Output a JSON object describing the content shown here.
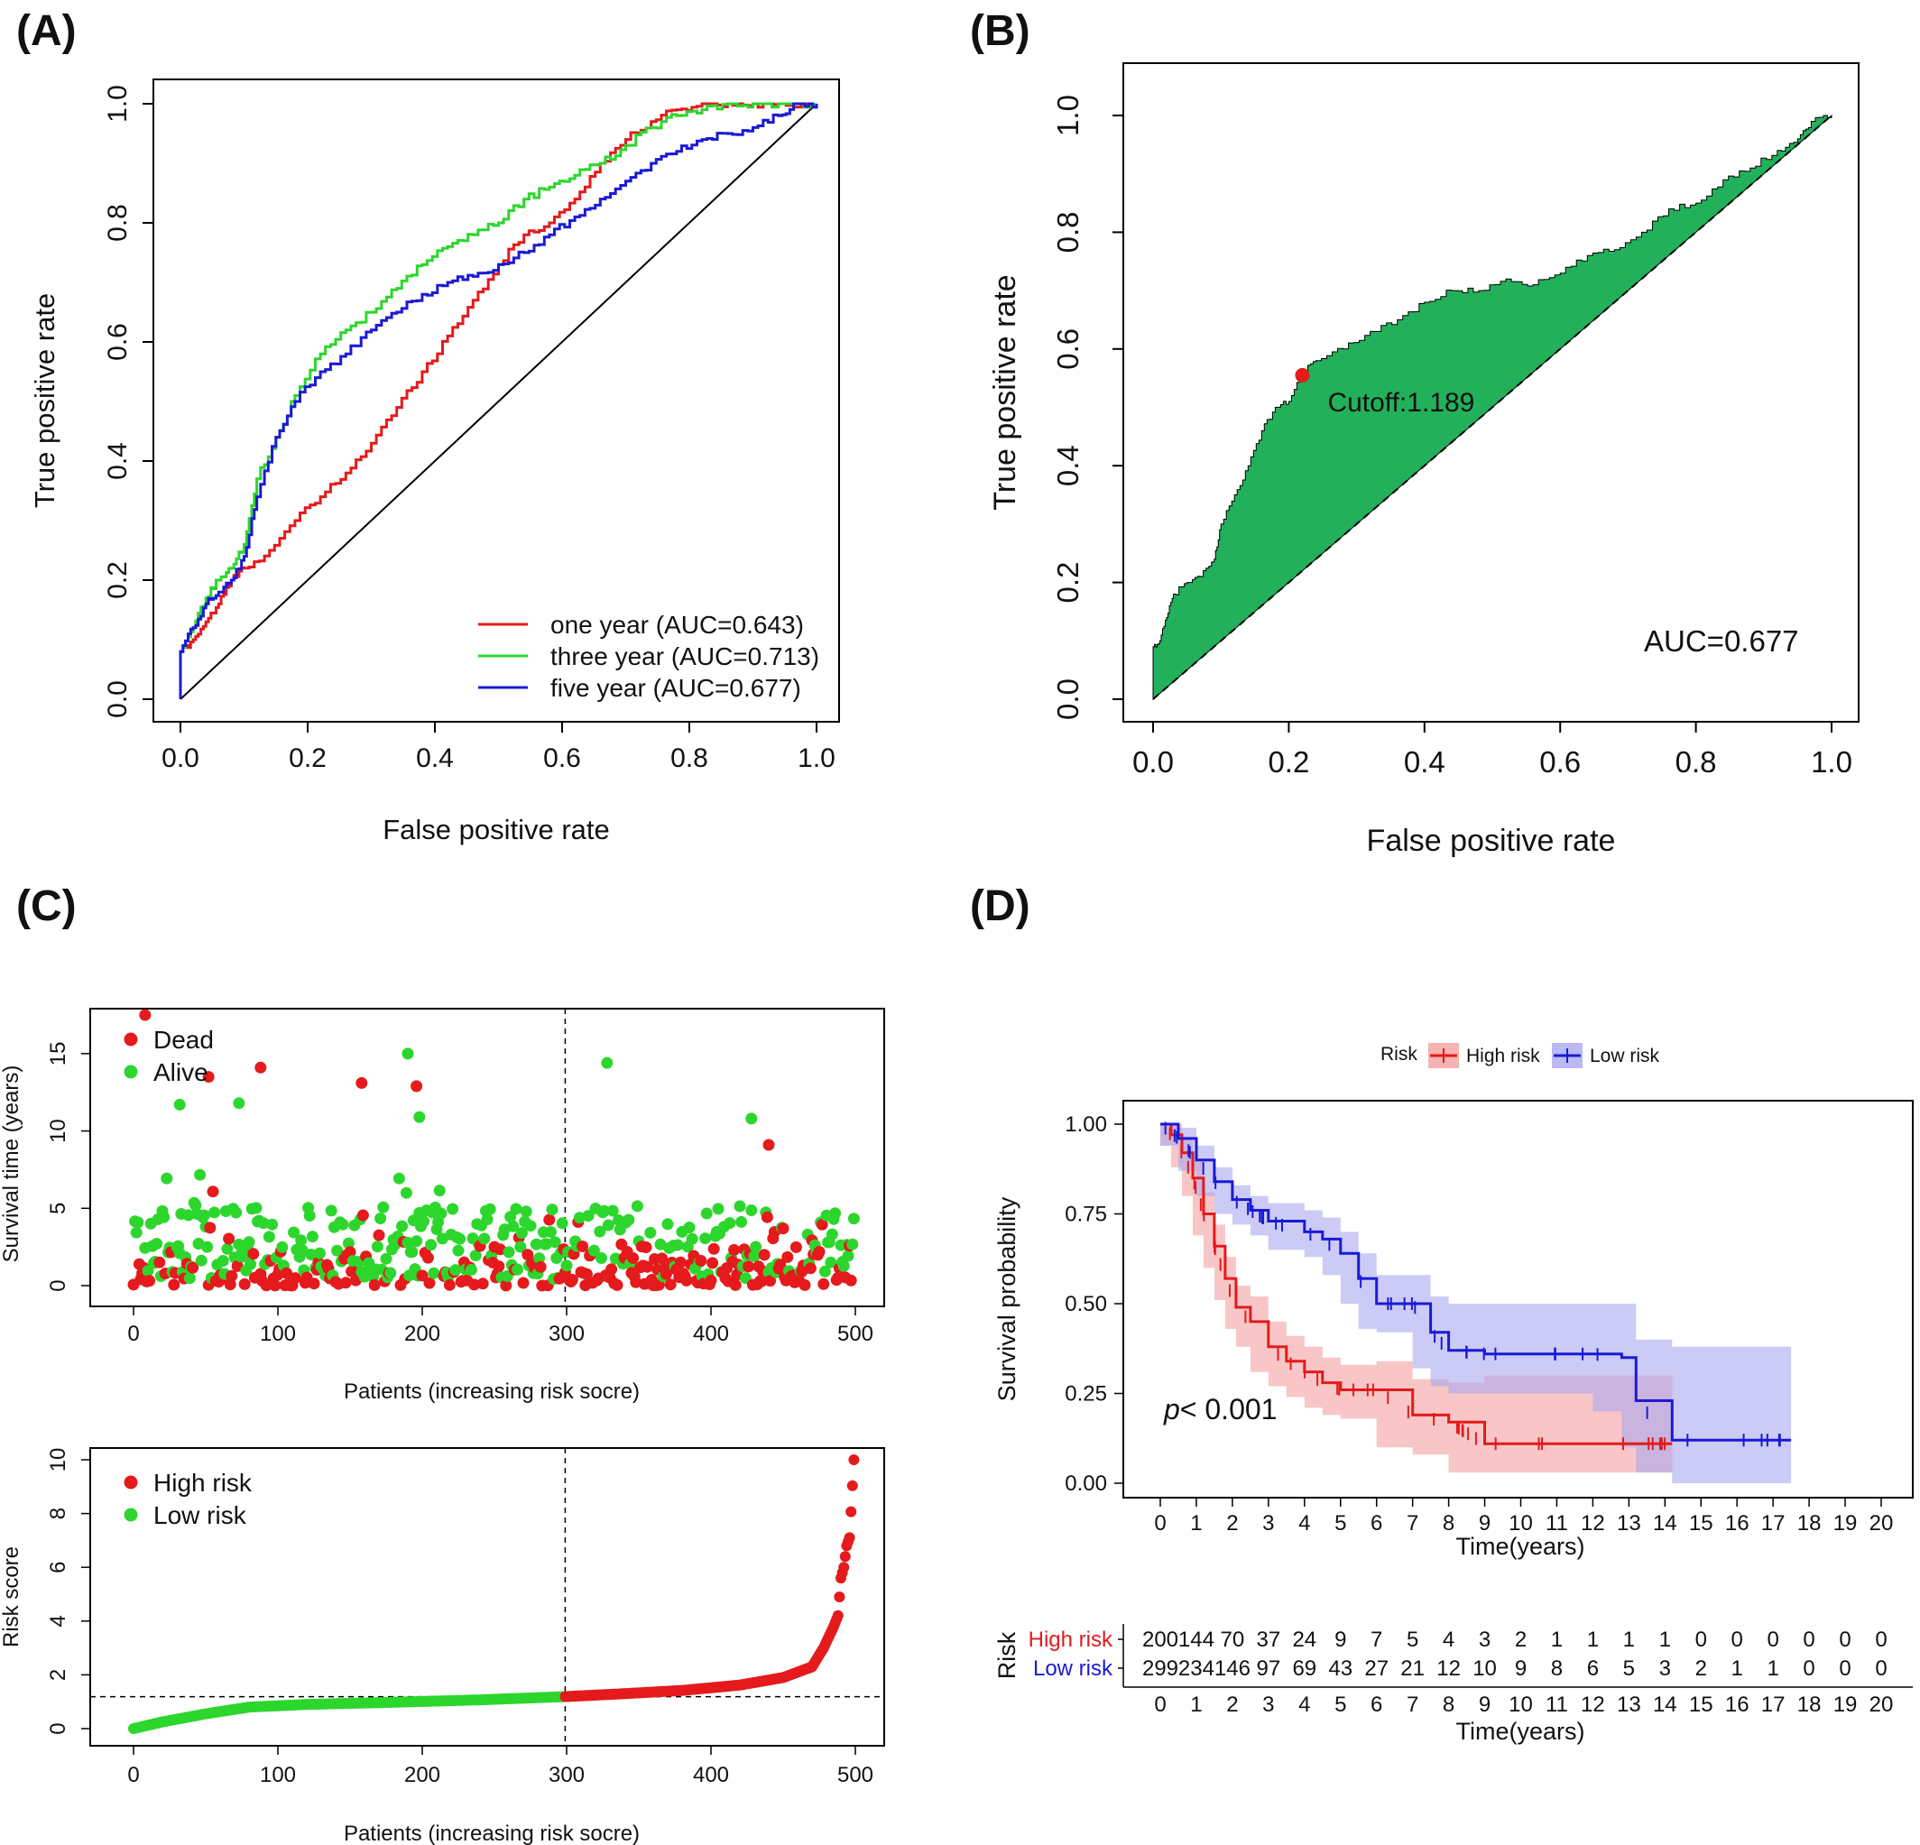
{
  "figure": {
    "panel_labels": [
      "(A)",
      "(B)",
      "(C)",
      "(D)"
    ]
  },
  "chart_data": [
    {
      "panel": "(A)",
      "type": "line",
      "xlabel": "False positive rate",
      "ylabel": "True positive rate",
      "xlim": [
        0,
        1
      ],
      "ylim": [
        0,
        1
      ],
      "xticks": [
        "0.0",
        "0.2",
        "0.4",
        "0.6",
        "0.8",
        "1.0"
      ],
      "yticks": [
        "0.0",
        "0.2",
        "0.4",
        "0.6",
        "0.8",
        "1.0"
      ],
      "diagonal": true,
      "legend_position": "bottom-right",
      "series": [
        {
          "name": "one year (AUC=0.643)",
          "color": "#e41a1c",
          "x": [
            0,
            0,
            0.02,
            0.04,
            0.06,
            0.08,
            0.1,
            0.14,
            0.18,
            0.22,
            0.26,
            0.3,
            0.34,
            0.38,
            0.42,
            0.46,
            0.5,
            0.54,
            0.58,
            0.62,
            0.66,
            0.7,
            0.74,
            0.78,
            0.82,
            0.86,
            0.9,
            0.94,
            1.0
          ],
          "y": [
            0,
            0.08,
            0.1,
            0.13,
            0.16,
            0.2,
            0.22,
            0.25,
            0.3,
            0.34,
            0.38,
            0.43,
            0.49,
            0.55,
            0.61,
            0.67,
            0.73,
            0.78,
            0.8,
            0.84,
            0.9,
            0.94,
            0.97,
            0.99,
            1.0,
            1.0,
            1.0,
            1.0,
            1.0
          ]
        },
        {
          "name": "three year (AUC=0.713)",
          "color": "#2dd62d",
          "x": [
            0,
            0,
            0.02,
            0.04,
            0.06,
            0.08,
            0.1,
            0.12,
            0.15,
            0.18,
            0.22,
            0.26,
            0.3,
            0.34,
            0.38,
            0.42,
            0.46,
            0.5,
            0.54,
            0.58,
            0.62,
            0.66,
            0.7,
            0.74,
            0.78,
            0.82,
            0.86,
            0.9,
            0.95,
            1.0
          ],
          "y": [
            0,
            0.08,
            0.12,
            0.17,
            0.2,
            0.22,
            0.26,
            0.37,
            0.44,
            0.51,
            0.58,
            0.62,
            0.65,
            0.69,
            0.73,
            0.76,
            0.78,
            0.8,
            0.84,
            0.86,
            0.88,
            0.9,
            0.93,
            0.96,
            0.98,
            0.99,
            1.0,
            1.0,
            1.0,
            1.0
          ]
        },
        {
          "name": "five year (AUC=0.677)",
          "color": "#1a1ad6",
          "x": [
            0,
            0,
            0.02,
            0.04,
            0.06,
            0.08,
            0.1,
            0.12,
            0.15,
            0.18,
            0.22,
            0.26,
            0.3,
            0.34,
            0.38,
            0.42,
            0.46,
            0.5,
            0.54,
            0.58,
            0.62,
            0.66,
            0.7,
            0.74,
            0.78,
            0.82,
            0.86,
            0.9,
            0.94,
            0.97,
            1.0
          ],
          "y": [
            0,
            0.08,
            0.12,
            0.16,
            0.18,
            0.2,
            0.24,
            0.34,
            0.44,
            0.5,
            0.55,
            0.58,
            0.62,
            0.65,
            0.68,
            0.7,
            0.71,
            0.73,
            0.75,
            0.78,
            0.81,
            0.84,
            0.87,
            0.9,
            0.92,
            0.94,
            0.95,
            0.96,
            0.98,
            1.0,
            1.0
          ]
        }
      ]
    },
    {
      "panel": "(B)",
      "type": "area",
      "xlabel": "False positive rate",
      "ylabel": "True positive rate",
      "xlim": [
        0,
        1
      ],
      "ylim": [
        0,
        1
      ],
      "xticks": [
        "0.0",
        "0.2",
        "0.4",
        "0.6",
        "0.8",
        "1.0"
      ],
      "yticks": [
        "0.0",
        "0.2",
        "0.4",
        "0.6",
        "0.8",
        "1.0"
      ],
      "fill_color": "#22b05a",
      "roc": {
        "x": [
          0,
          0,
          0.01,
          0.02,
          0.03,
          0.05,
          0.07,
          0.09,
          0.1,
          0.12,
          0.14,
          0.16,
          0.18,
          0.2,
          0.22,
          0.24,
          0.28,
          0.32,
          0.36,
          0.4,
          0.44,
          0.48,
          0.52,
          0.56,
          0.6,
          0.64,
          0.68,
          0.72,
          0.76,
          0.8,
          0.84,
          0.88,
          0.92,
          0.95,
          0.97,
          1.0
        ],
        "y": [
          0,
          0.09,
          0.1,
          0.14,
          0.18,
          0.2,
          0.21,
          0.24,
          0.3,
          0.35,
          0.4,
          0.46,
          0.5,
          0.51,
          0.56,
          0.58,
          0.6,
          0.63,
          0.65,
          0.68,
          0.7,
          0.7,
          0.72,
          0.71,
          0.73,
          0.76,
          0.77,
          0.8,
          0.84,
          0.85,
          0.89,
          0.91,
          0.94,
          0.96,
          0.99,
          1.0
        ]
      },
      "cutoff": {
        "x": 0.22,
        "y": 0.555,
        "label": "Cutoff:1.189",
        "color": "#e41a1c"
      },
      "auc_label": "AUC=0.677"
    },
    {
      "panel": "(C)-top",
      "type": "scatter",
      "xlabel": "Patients (increasing risk socre)",
      "ylabel": "Survival time (years)",
      "xlim": [
        0,
        500
      ],
      "ylim": [
        0,
        17.5
      ],
      "xticks": [
        "0",
        "100",
        "200",
        "300",
        "400",
        "500"
      ],
      "yticks": [
        "0",
        "5",
        "10",
        "15"
      ],
      "cutoff_index": 299,
      "legend_position": "top-left",
      "series": [
        {
          "name": "Dead",
          "color": "#e41a1c"
        },
        {
          "name": "Alive",
          "color": "#2dd62d"
        }
      ],
      "notable_points": [
        {
          "x": 8,
          "y": 17.5,
          "status": "Dead"
        },
        {
          "x": 52,
          "y": 13.5,
          "status": "Dead"
        },
        {
          "x": 88,
          "y": 14.1,
          "status": "Dead"
        },
        {
          "x": 158,
          "y": 13.1,
          "status": "Dead"
        },
        {
          "x": 190,
          "y": 15.0,
          "status": "Alive"
        },
        {
          "x": 196,
          "y": 12.9,
          "status": "Dead"
        },
        {
          "x": 198,
          "y": 10.9,
          "status": "Alive"
        },
        {
          "x": 328,
          "y": 14.4,
          "status": "Alive"
        },
        {
          "x": 428,
          "y": 10.8,
          "status": "Alive"
        },
        {
          "x": 440,
          "y": 9.1,
          "status": "Dead"
        },
        {
          "x": 32,
          "y": 11.7,
          "status": "Alive"
        },
        {
          "x": 73,
          "y": 11.8,
          "status": "Alive"
        }
      ]
    },
    {
      "panel": "(C)-bottom",
      "type": "scatter",
      "xlabel": "Patients (increasing risk socre)",
      "ylabel": "Risk score",
      "xlim": [
        0,
        500
      ],
      "ylim": [
        0,
        10
      ],
      "xticks": [
        "0",
        "100",
        "200",
        "300",
        "400",
        "500"
      ],
      "yticks": [
        "0",
        "2",
        "4",
        "6",
        "8",
        "10"
      ],
      "cutoff_index": 299,
      "cutoff_value": 1.189,
      "legend_position": "top-left",
      "series": [
        {
          "name": "High risk",
          "color": "#e41a1c"
        },
        {
          "name": "Low risk",
          "color": "#2dd62d"
        }
      ],
      "curve": {
        "index": [
          0,
          20,
          50,
          80,
          120,
          180,
          240,
          299,
          340,
          380,
          420,
          450,
          470,
          478,
          485,
          488,
          490,
          492,
          494,
          496,
          499
        ],
        "risk": [
          0.0,
          0.25,
          0.55,
          0.8,
          0.9,
          0.98,
          1.07,
          1.19,
          1.3,
          1.42,
          1.62,
          1.9,
          2.3,
          3.0,
          3.8,
          4.2,
          5.6,
          6.0,
          6.8,
          7.1,
          10.0
        ]
      }
    },
    {
      "panel": "(D)",
      "type": "line",
      "legend_title": "Risk",
      "xlabel": "Time(years)",
      "ylabel": "Survival probability",
      "xlim": [
        0,
        20
      ],
      "ylim": [
        0,
        1
      ],
      "xticks": [
        "0",
        "1",
        "2",
        "3",
        "4",
        "5",
        "6",
        "7",
        "8",
        "9",
        "10",
        "11",
        "12",
        "13",
        "14",
        "15",
        "16",
        "17",
        "18",
        "19",
        "20"
      ],
      "yticks": [
        "0.00",
        "0.25",
        "0.50",
        "0.75",
        "1.00"
      ],
      "pvalue_prefix": "p",
      "pvalue_value": "< 0.001",
      "series": [
        {
          "name": "High risk",
          "color": "#e41a1c",
          "band_color": "#f4a0a0",
          "x": [
            0,
            0.3,
            0.6,
            0.9,
            1.2,
            1.5,
            1.8,
            2.1,
            2.5,
            3.0,
            3.5,
            4.0,
            4.5,
            5.0,
            6.0,
            7.0,
            8.0,
            9.0,
            10.0,
            13.0,
            14.2
          ],
          "y": [
            1.0,
            0.97,
            0.92,
            0.85,
            0.75,
            0.66,
            0.57,
            0.49,
            0.45,
            0.38,
            0.34,
            0.31,
            0.28,
            0.26,
            0.26,
            0.19,
            0.17,
            0.11,
            0.11,
            0.11,
            0.11
          ],
          "lower": [
            1.0,
            0.94,
            0.88,
            0.8,
            0.69,
            0.6,
            0.51,
            0.43,
            0.38,
            0.31,
            0.27,
            0.24,
            0.21,
            0.19,
            0.18,
            0.1,
            0.08,
            0.03,
            0.03,
            0.03,
            0.03
          ],
          "upper": [
            1.0,
            1.0,
            0.96,
            0.9,
            0.81,
            0.72,
            0.63,
            0.55,
            0.52,
            0.45,
            0.41,
            0.38,
            0.35,
            0.33,
            0.34,
            0.29,
            0.28,
            0.3,
            0.3,
            0.3,
            0.3
          ]
        },
        {
          "name": "Low risk",
          "color": "#1a1ad6",
          "band_color": "#a8a8f0",
          "x": [
            0,
            0.5,
            1.0,
            1.5,
            2.0,
            2.5,
            3.0,
            4.0,
            4.5,
            5.0,
            5.5,
            6.0,
            7.0,
            7.5,
            8.0,
            9.0,
            11.0,
            12.0,
            12.8,
            13.2,
            14.2,
            17.5
          ],
          "y": [
            1.0,
            0.96,
            0.9,
            0.84,
            0.79,
            0.76,
            0.73,
            0.7,
            0.68,
            0.64,
            0.57,
            0.5,
            0.5,
            0.42,
            0.37,
            0.36,
            0.36,
            0.36,
            0.35,
            0.23,
            0.12,
            0.12
          ],
          "lower": [
            1.0,
            0.94,
            0.87,
            0.8,
            0.75,
            0.72,
            0.69,
            0.65,
            0.63,
            0.58,
            0.5,
            0.43,
            0.42,
            0.32,
            0.27,
            0.25,
            0.25,
            0.25,
            0.2,
            0.1,
            0.03,
            0.0
          ],
          "upper": [
            1.0,
            0.99,
            0.94,
            0.88,
            0.83,
            0.8,
            0.78,
            0.76,
            0.74,
            0.7,
            0.64,
            0.58,
            0.58,
            0.52,
            0.5,
            0.5,
            0.5,
            0.5,
            0.5,
            0.4,
            0.38,
            0.38
          ]
        }
      ],
      "risk_table": {
        "title": "Risk",
        "xlabel": "Time(years)",
        "rows": [
          {
            "label": "High risk",
            "color": "#e41a1c",
            "counts": [
              "200",
              "144",
              "70",
              "37",
              "24",
              "9",
              "7",
              "5",
              "4",
              "3",
              "2",
              "1",
              "1",
              "1",
              "1",
              "0",
              "0",
              "0",
              "0",
              "0",
              "0"
            ]
          },
          {
            "label": "Low risk",
            "color": "#1a1ad6",
            "counts": [
              "299",
              "234",
              "146",
              "97",
              "69",
              "43",
              "27",
              "21",
              "12",
              "10",
              "9",
              "8",
              "6",
              "5",
              "3",
              "2",
              "1",
              "1",
              "0",
              "0",
              "0"
            ]
          }
        ]
      }
    }
  ]
}
